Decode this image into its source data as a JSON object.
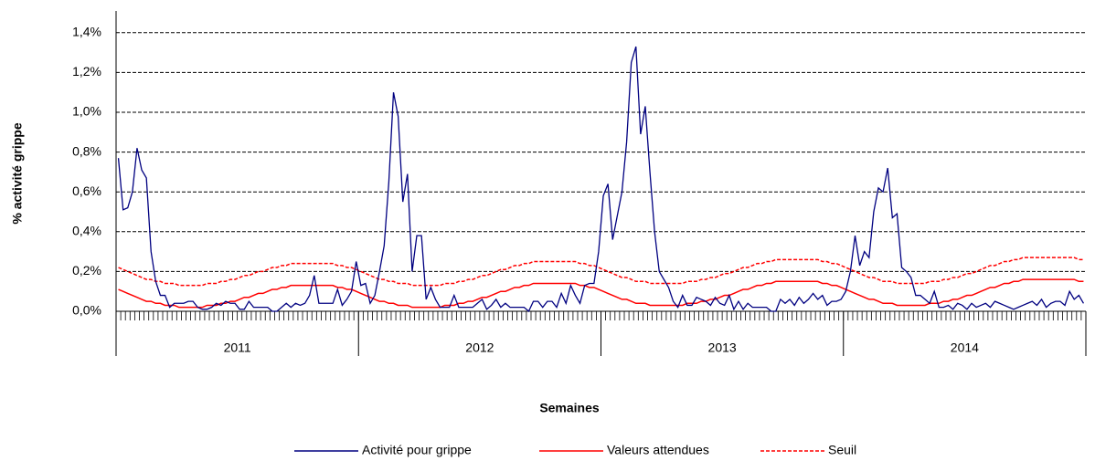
{
  "chart_data": {
    "type": "line",
    "x_label": "Semaines",
    "y_label": "% activité grippe",
    "groups": [
      "2011",
      "2012",
      "2013",
      "2014"
    ],
    "ylim": [
      0,
      1.5
    ],
    "yticks": [
      {
        "value": 0,
        "label": "0,0%"
      },
      {
        "value": 0.2,
        "label": "0,2%"
      },
      {
        "value": 0.4,
        "label": "0,4%"
      },
      {
        "value": 0.6,
        "label": "0,6%"
      },
      {
        "value": 0.8,
        "label": "0,8%"
      },
      {
        "value": 1.0,
        "label": "1,0%"
      },
      {
        "value": 1.2,
        "label": "1,2%"
      },
      {
        "value": 1.4,
        "label": "1,4%"
      }
    ],
    "grid": true,
    "legend": "bottom",
    "series": [
      {
        "name": "Activité pour grippe",
        "color": "#000080",
        "dash": false,
        "values": [
          0.77,
          0.51,
          0.52,
          0.6,
          0.82,
          0.71,
          0.67,
          0.3,
          0.15,
          0.08,
          0.08,
          0.02,
          0.04,
          0.04,
          0.04,
          0.05,
          0.05,
          0.02,
          0.01,
          0.01,
          0.02,
          0.04,
          0.03,
          0.05,
          0.04,
          0.04,
          0.01,
          0.01,
          0.05,
          0.02,
          0.02,
          0.02,
          0.02,
          0,
          0,
          0.02,
          0.04,
          0.02,
          0.04,
          0.03,
          0.04,
          0.08,
          0.18,
          0.04,
          0.04,
          0.04,
          0.04,
          0.11,
          0.03,
          0.06,
          0.1,
          0.25,
          0.13,
          0.14,
          0.04,
          0.08,
          0.2,
          0.33,
          0.65,
          1.1,
          0.98,
          0.55,
          0.69,
          0.2,
          0.38,
          0.38,
          0.06,
          0.12,
          0.06,
          0.02,
          0.02,
          0.02,
          0.08,
          0.02,
          0.02,
          0.02,
          0.02,
          0.04,
          0.06,
          0.01,
          0.03,
          0.06,
          0.02,
          0.04,
          0.02,
          0.02,
          0.02,
          0.02,
          0,
          0.05,
          0.05,
          0.02,
          0.05,
          0.05,
          0.02,
          0.09,
          0.04,
          0.13,
          0.08,
          0.04,
          0.13,
          0.14,
          0.14,
          0.3,
          0.58,
          0.64,
          0.36,
          0.48,
          0.6,
          0.85,
          1.25,
          1.33,
          0.89,
          1.03,
          0.7,
          0.4,
          0.2,
          0.16,
          0.12,
          0.05,
          0.02,
          0.08,
          0.03,
          0.03,
          0.07,
          0.06,
          0.05,
          0.03,
          0.07,
          0.04,
          0.03,
          0.08,
          0.01,
          0.05,
          0.01,
          0.04,
          0.02,
          0.02,
          0.02,
          0.02,
          0,
          0,
          0.06,
          0.04,
          0.06,
          0.03,
          0.07,
          0.04,
          0.06,
          0.09,
          0.06,
          0.08,
          0.03,
          0.05,
          0.05,
          0.06,
          0.1,
          0.2,
          0.38,
          0.23,
          0.3,
          0.27,
          0.5,
          0.62,
          0.6,
          0.72,
          0.47,
          0.49,
          0.22,
          0.2,
          0.17,
          0.08,
          0.08,
          0.06,
          0.04,
          0.1,
          0.02,
          0.02,
          0.03,
          0.01,
          0.04,
          0.03,
          0.01,
          0.04,
          0.02,
          0.03,
          0.04,
          0.02,
          0.05,
          0.04,
          0.03,
          0.02,
          0.01,
          0.02,
          0.03,
          0.04,
          0.05,
          0.03,
          0.06,
          0.02,
          0.04,
          0.05,
          0.05,
          0.03,
          0.1,
          0.06,
          0.08,
          0.04
        ]
      },
      {
        "name": "Valeurs attendues",
        "color": "#ff0000",
        "dash": false,
        "values": [
          0.11,
          0.1,
          0.09,
          0.08,
          0.07,
          0.06,
          0.05,
          0.05,
          0.04,
          0.04,
          0.03,
          0.03,
          0.03,
          0.02,
          0.02,
          0.02,
          0.02,
          0.02,
          0.02,
          0.03,
          0.03,
          0.03,
          0.04,
          0.04,
          0.05,
          0.05,
          0.06,
          0.07,
          0.07,
          0.08,
          0.09,
          0.09,
          0.1,
          0.11,
          0.11,
          0.12,
          0.12,
          0.13,
          0.13,
          0.13,
          0.13,
          0.13,
          0.13,
          0.13,
          0.13,
          0.13,
          0.13,
          0.12,
          0.12,
          0.11,
          0.11,
          0.1,
          0.09,
          0.08,
          0.07,
          0.06,
          0.05,
          0.05,
          0.04,
          0.04,
          0.03,
          0.03,
          0.03,
          0.02,
          0.02,
          0.02,
          0.02,
          0.02,
          0.02,
          0.02,
          0.03,
          0.03,
          0.03,
          0.04,
          0.04,
          0.05,
          0.05,
          0.06,
          0.07,
          0.07,
          0.08,
          0.09,
          0.1,
          0.1,
          0.11,
          0.12,
          0.12,
          0.13,
          0.13,
          0.14,
          0.14,
          0.14,
          0.14,
          0.14,
          0.14,
          0.14,
          0.14,
          0.14,
          0.14,
          0.13,
          0.13,
          0.12,
          0.12,
          0.11,
          0.1,
          0.09,
          0.08,
          0.07,
          0.06,
          0.06,
          0.05,
          0.04,
          0.04,
          0.04,
          0.03,
          0.03,
          0.03,
          0.03,
          0.03,
          0.03,
          0.03,
          0.03,
          0.04,
          0.04,
          0.04,
          0.05,
          0.05,
          0.06,
          0.06,
          0.07,
          0.08,
          0.08,
          0.09,
          0.1,
          0.11,
          0.11,
          0.12,
          0.13,
          0.13,
          0.14,
          0.14,
          0.15,
          0.15,
          0.15,
          0.15,
          0.15,
          0.15,
          0.15,
          0.15,
          0.15,
          0.15,
          0.14,
          0.14,
          0.13,
          0.13,
          0.12,
          0.11,
          0.1,
          0.09,
          0.08,
          0.07,
          0.06,
          0.06,
          0.05,
          0.04,
          0.04,
          0.04,
          0.03,
          0.03,
          0.03,
          0.03,
          0.03,
          0.03,
          0.03,
          0.04,
          0.04,
          0.04,
          0.05,
          0.05,
          0.06,
          0.06,
          0.07,
          0.08,
          0.08,
          0.09,
          0.1,
          0.11,
          0.12,
          0.12,
          0.13,
          0.14,
          0.14,
          0.15,
          0.15,
          0.16,
          0.16,
          0.16,
          0.16,
          0.16,
          0.16,
          0.16,
          0.16,
          0.16,
          0.16,
          0.16,
          0.16,
          0.15,
          0.15
        ]
      },
      {
        "name": "Seuil",
        "color": "#ff0000",
        "dash": true,
        "values": [
          0.22,
          0.21,
          0.2,
          0.19,
          0.18,
          0.17,
          0.16,
          0.16,
          0.15,
          0.15,
          0.14,
          0.14,
          0.14,
          0.13,
          0.13,
          0.13,
          0.13,
          0.13,
          0.13,
          0.14,
          0.14,
          0.14,
          0.15,
          0.15,
          0.16,
          0.16,
          0.17,
          0.18,
          0.18,
          0.19,
          0.2,
          0.2,
          0.21,
          0.22,
          0.22,
          0.23,
          0.23,
          0.24,
          0.24,
          0.24,
          0.24,
          0.24,
          0.24,
          0.24,
          0.24,
          0.24,
          0.24,
          0.23,
          0.23,
          0.22,
          0.22,
          0.21,
          0.2,
          0.19,
          0.18,
          0.17,
          0.16,
          0.16,
          0.15,
          0.15,
          0.14,
          0.14,
          0.14,
          0.13,
          0.13,
          0.13,
          0.13,
          0.13,
          0.13,
          0.13,
          0.14,
          0.14,
          0.14,
          0.15,
          0.15,
          0.16,
          0.16,
          0.17,
          0.18,
          0.18,
          0.19,
          0.2,
          0.21,
          0.21,
          0.22,
          0.23,
          0.23,
          0.24,
          0.24,
          0.25,
          0.25,
          0.25,
          0.25,
          0.25,
          0.25,
          0.25,
          0.25,
          0.25,
          0.25,
          0.24,
          0.24,
          0.23,
          0.23,
          0.22,
          0.21,
          0.2,
          0.19,
          0.18,
          0.17,
          0.17,
          0.16,
          0.15,
          0.15,
          0.15,
          0.14,
          0.14,
          0.14,
          0.14,
          0.14,
          0.14,
          0.14,
          0.14,
          0.15,
          0.15,
          0.15,
          0.16,
          0.16,
          0.17,
          0.17,
          0.18,
          0.19,
          0.19,
          0.2,
          0.21,
          0.22,
          0.22,
          0.23,
          0.24,
          0.24,
          0.25,
          0.25,
          0.26,
          0.26,
          0.26,
          0.26,
          0.26,
          0.26,
          0.26,
          0.26,
          0.26,
          0.26,
          0.25,
          0.25,
          0.24,
          0.24,
          0.23,
          0.22,
          0.21,
          0.2,
          0.19,
          0.18,
          0.17,
          0.17,
          0.16,
          0.15,
          0.15,
          0.15,
          0.14,
          0.14,
          0.14,
          0.14,
          0.14,
          0.14,
          0.14,
          0.15,
          0.15,
          0.15,
          0.16,
          0.16,
          0.17,
          0.17,
          0.18,
          0.19,
          0.19,
          0.2,
          0.21,
          0.22,
          0.23,
          0.23,
          0.24,
          0.25,
          0.25,
          0.26,
          0.26,
          0.27,
          0.27,
          0.27,
          0.27,
          0.27,
          0.27,
          0.27,
          0.27,
          0.27,
          0.27,
          0.27,
          0.27,
          0.26,
          0.26
        ]
      }
    ]
  }
}
